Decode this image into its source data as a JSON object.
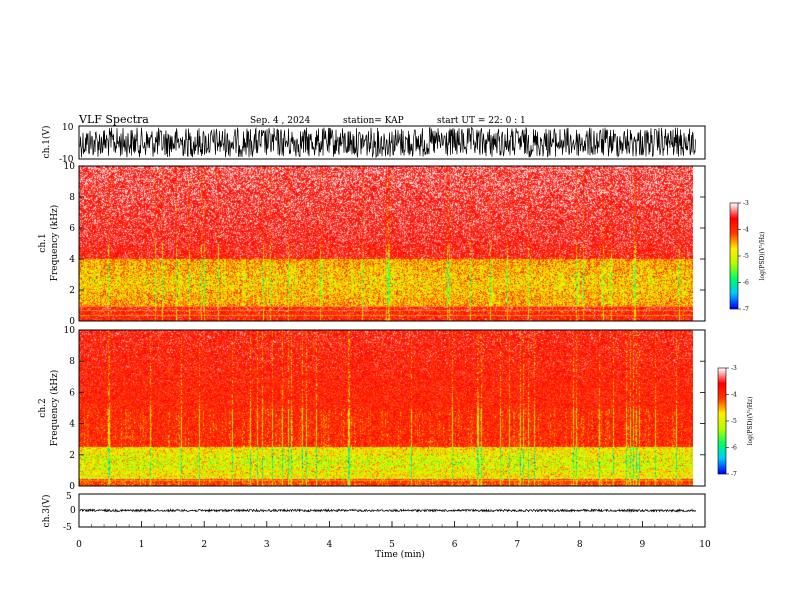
{
  "header": {
    "title": "VLF Spectra",
    "date": "Sep. 4 , 2024",
    "station": "station= KAP",
    "start": "start  UT =   22: 0  : 1"
  },
  "chart_data": [
    {
      "type": "line",
      "panel": "ch.1 waveform",
      "ylabel": "ch.1(V)",
      "ylim": [
        -10,
        10
      ],
      "y_tick_labels": [
        "10",
        "-10"
      ],
      "x_range_min": [
        0,
        9.85
      ],
      "color": "#000000"
    },
    {
      "type": "heatmap",
      "panel": "ch.1 spectrogram",
      "ylabel": "ch.1\nFrequency (kHz)",
      "ylim": [
        0,
        10
      ],
      "y_tick_labels": [
        "0",
        "2",
        "4",
        "6",
        "8",
        "10"
      ],
      "x_range_min": [
        0,
        9.85
      ],
      "colorbar": {
        "label": "log(PSD)(V²/Hz)",
        "range": [
          -7,
          -3
        ],
        "tick_labels": [
          "-3",
          "-4",
          "-5",
          "-6",
          "-7"
        ]
      },
      "background_level": -3.6,
      "activity_band_khz": [
        1,
        4
      ]
    },
    {
      "type": "heatmap",
      "panel": "ch.2 spectrogram",
      "ylabel": "ch.2\nFrequency (kHz)",
      "ylim": [
        0,
        10
      ],
      "y_tick_labels": [
        "0",
        "2",
        "4",
        "6",
        "8",
        "10"
      ],
      "x_range_min": [
        0,
        9.85
      ],
      "colorbar": {
        "label": "log(PSD)(V²/Hz)",
        "range": [
          -7,
          -3
        ],
        "tick_labels": [
          "-3",
          "-4",
          "-5",
          "-6",
          "-7"
        ]
      },
      "background_level": -3.9,
      "activity_band_khz": [
        0.5,
        2.5
      ]
    },
    {
      "type": "line",
      "panel": "ch.3 waveform",
      "ylabel": "ch.3(V)",
      "ylim": [
        -5,
        5
      ],
      "y_tick_labels": [
        "5",
        "0",
        "-5"
      ],
      "x_range_min": [
        0,
        9.85
      ],
      "xlabel": "Time (min)",
      "x_tick_labels": [
        "0",
        "1",
        "2",
        "3",
        "4",
        "5",
        "6",
        "7",
        "8",
        "9",
        "10"
      ],
      "xlim": [
        0,
        10
      ],
      "color": "#000000"
    }
  ],
  "colormap": [
    "#0000ff",
    "#00c8ff",
    "#00ff60",
    "#b8ff00",
    "#ffee00",
    "#ff3a00",
    "#ff0000",
    "#ffffff"
  ]
}
